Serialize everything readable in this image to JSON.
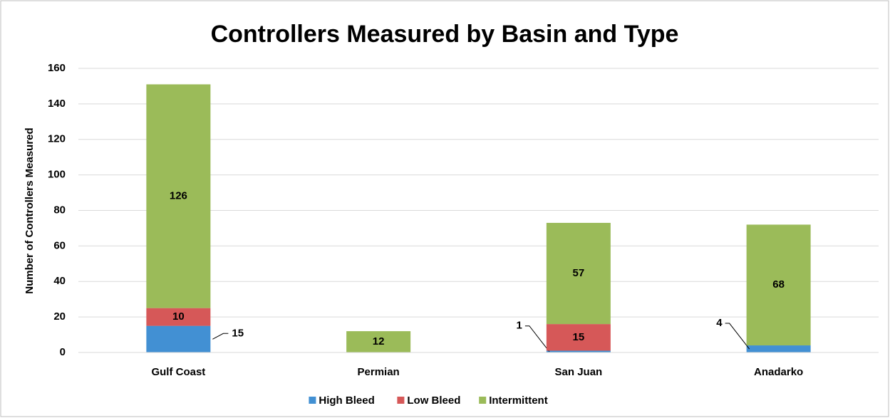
{
  "chart_data": {
    "type": "stacked_bar",
    "title": "Controllers Measured by Basin and Type",
    "y_label": "Number of Controllers Measured",
    "categories": [
      "Gulf Coast",
      "Permian",
      "San Juan",
      "Anadarko"
    ],
    "series": [
      {
        "name": "High Bleed",
        "color": "#4290d3",
        "values": [
          15,
          0,
          1,
          4
        ]
      },
      {
        "name": "Low Bleed",
        "color": "#d65858",
        "values": [
          10,
          0,
          15,
          0
        ]
      },
      {
        "name": "Intermittent",
        "color": "#9bbb59",
        "values": [
          126,
          12,
          57,
          68
        ]
      }
    ],
    "ylim": [
      0,
      160
    ],
    "yticks": [
      0,
      20,
      40,
      60,
      80,
      100,
      120,
      140,
      160
    ],
    "grid": true,
    "legend": "bottom"
  }
}
